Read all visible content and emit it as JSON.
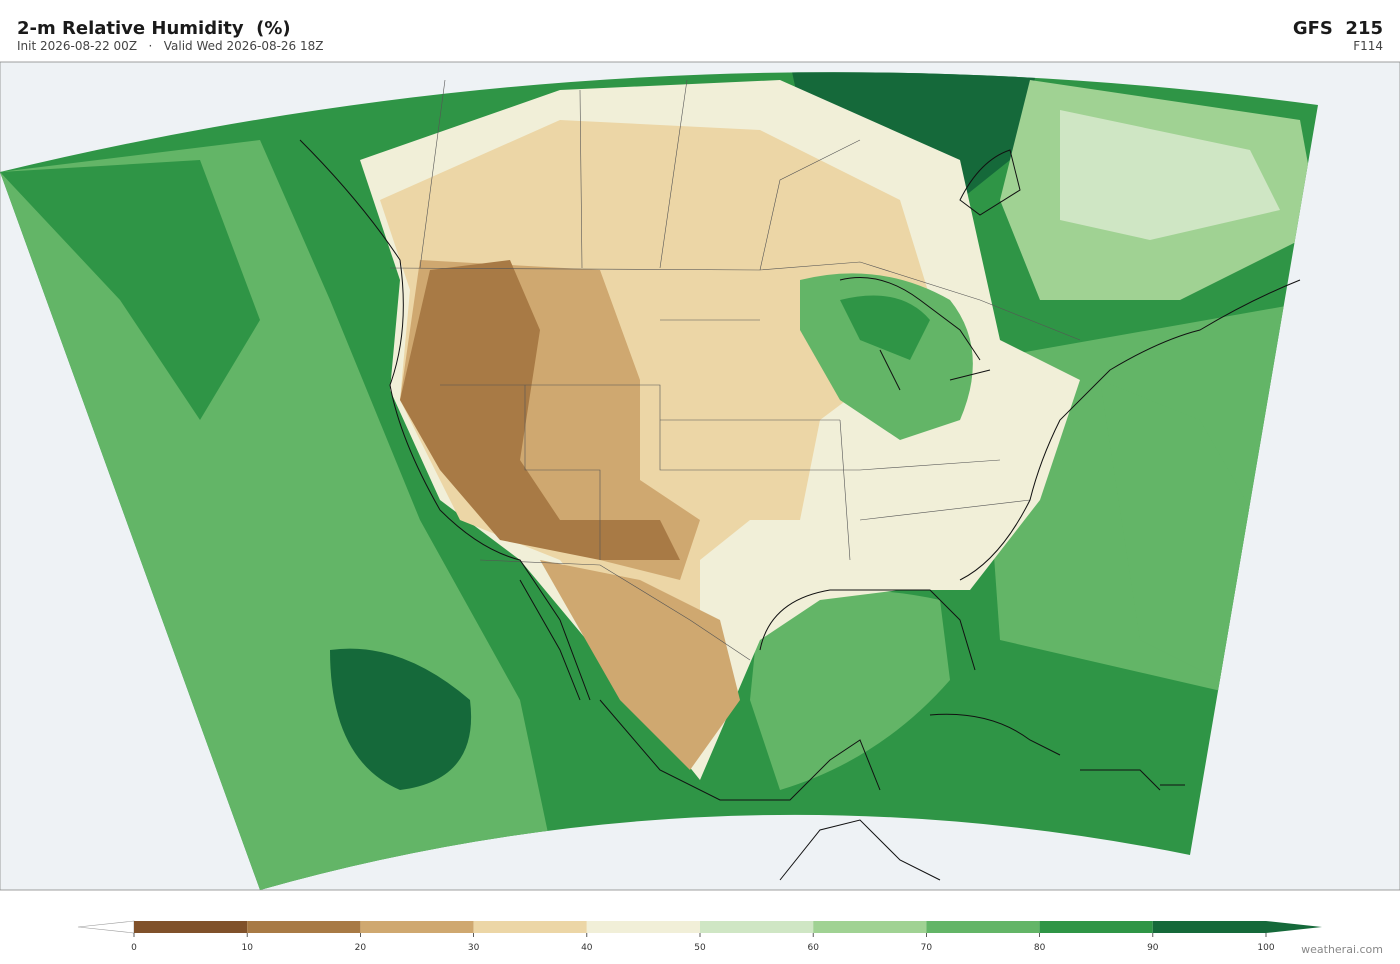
{
  "header": {
    "title": "2-m Relative Humidity  (%)",
    "subtitle": "Init 2026-08-22 00Z   ·   Valid Wed 2026-08-26 18Z",
    "model": "GFS  215",
    "forecast_hour": "F114"
  },
  "colorbar": {
    "ticks": [
      0,
      10,
      20,
      30,
      40,
      50,
      60,
      70,
      80,
      90,
      100
    ],
    "colors": [
      "#80512a",
      "#a87a45",
      "#cfa870",
      "#ecd6a6",
      "#f1efd8",
      "#cfe6c4",
      "#a0d293",
      "#63b567",
      "#2f9546",
      "#15693a"
    ],
    "under_color": "#ffffff",
    "over_color": "#15693a"
  },
  "watermark": "weatherai.com"
}
